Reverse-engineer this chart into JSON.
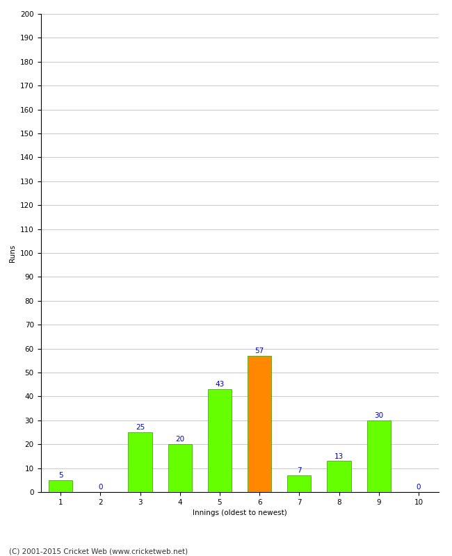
{
  "categories": [
    1,
    2,
    3,
    4,
    5,
    6,
    7,
    8,
    9,
    10
  ],
  "values": [
    5,
    0,
    25,
    20,
    43,
    57,
    7,
    13,
    30,
    0
  ],
  "bar_colors": [
    "#66ff00",
    "#66ff00",
    "#66ff00",
    "#66ff00",
    "#66ff00",
    "#ff8800",
    "#66ff00",
    "#66ff00",
    "#66ff00",
    "#66ff00"
  ],
  "xlabel": "Innings (oldest to newest)",
  "ylabel": "Runs",
  "ylim": [
    0,
    200
  ],
  "yticks": [
    0,
    10,
    20,
    30,
    40,
    50,
    60,
    70,
    80,
    90,
    100,
    110,
    120,
    130,
    140,
    150,
    160,
    170,
    180,
    190,
    200
  ],
  "label_color": "#0000cc",
  "label_fontsize": 7.5,
  "axis_label_fontsize": 7.5,
  "tick_fontsize": 7.5,
  "footer_text": "(C) 2001-2015 Cricket Web (www.cricketweb.net)",
  "footer_fontsize": 7.5,
  "background_color": "#ffffff",
  "grid_color": "#cccccc",
  "bar_edge_color": "#339900",
  "bar_width": 0.6
}
